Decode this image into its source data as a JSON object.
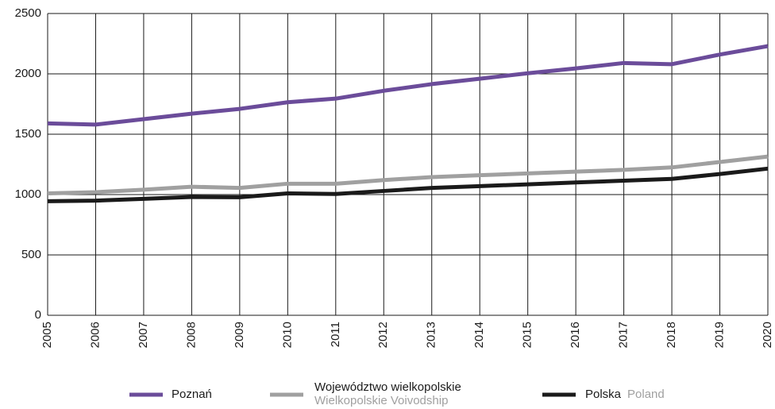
{
  "chart_data": {
    "type": "line",
    "x": [
      2005,
      2006,
      2007,
      2008,
      2009,
      2010,
      2011,
      2012,
      2013,
      2014,
      2015,
      2016,
      2017,
      2018,
      2019,
      2020
    ],
    "series": [
      {
        "name": "Poznań",
        "color": "#6b4c9a",
        "values": [
          1590,
          1580,
          1625,
          1670,
          1710,
          1765,
          1795,
          1860,
          1915,
          1960,
          2005,
          2045,
          2090,
          2080,
          2160,
          2230
        ]
      },
      {
        "name": "Województwo wielkopolskie",
        "name_en": "Wielkopolskie Voivodship",
        "color": "#a0a0a0",
        "values": [
          1010,
          1020,
          1040,
          1065,
          1055,
          1090,
          1090,
          1120,
          1145,
          1160,
          1175,
          1190,
          1205,
          1225,
          1270,
          1315
        ]
      },
      {
        "name": "Polska",
        "name_en": "Poland",
        "color": "#1a1a1a",
        "values": [
          945,
          950,
          965,
          980,
          978,
          1010,
          1005,
          1030,
          1055,
          1070,
          1085,
          1100,
          1115,
          1130,
          1170,
          1215
        ]
      }
    ],
    "xlim": [
      2005,
      2020
    ],
    "xticks": [
      2005,
      2006,
      2007,
      2008,
      2009,
      2010,
      2011,
      2012,
      2013,
      2014,
      2015,
      2016,
      2017,
      2018,
      2019,
      2020
    ],
    "ylim": [
      0,
      2500
    ],
    "yticks": [
      0,
      500,
      1000,
      1500,
      2000,
      2500
    ],
    "grid": true
  }
}
